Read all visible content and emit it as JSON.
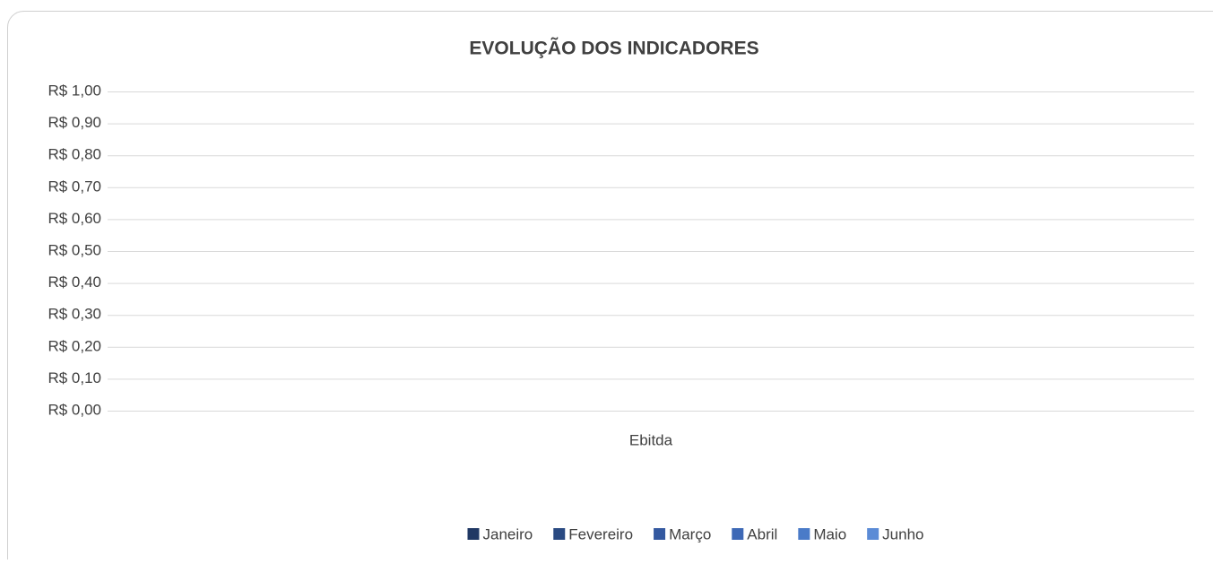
{
  "chart_data": {
    "type": "bar",
    "title": "EVOLUÇÃO DOS INDICADORES",
    "categories": [
      "Ebitda"
    ],
    "series": [
      {
        "name": "Janeiro",
        "color": "#203864",
        "values": [
          0
        ]
      },
      {
        "name": "Fevereiro",
        "color": "#2a4a82",
        "values": [
          0
        ]
      },
      {
        "name": "Março",
        "color": "#3459a0",
        "values": [
          0
        ]
      },
      {
        "name": "Abril",
        "color": "#3e69b6",
        "values": [
          0
        ]
      },
      {
        "name": "Maio",
        "color": "#4a7bc8",
        "values": [
          0
        ]
      },
      {
        "name": "Junho",
        "color": "#5b8bd6",
        "values": [
          0
        ]
      }
    ],
    "ylim": [
      0,
      1
    ],
    "yticks": [
      {
        "value": 0,
        "label": "R$ 0,00"
      },
      {
        "value": 0.1,
        "label": "R$ 0,10"
      },
      {
        "value": 0.2,
        "label": "R$ 0,20"
      },
      {
        "value": 0.3,
        "label": "R$ 0,30"
      },
      {
        "value": 0.4,
        "label": "R$ 0,40"
      },
      {
        "value": 0.5,
        "label": "R$ 0,50"
      },
      {
        "value": 0.6,
        "label": "R$ 0,60"
      },
      {
        "value": 0.7,
        "label": "R$ 0,70"
      },
      {
        "value": 0.8,
        "label": "R$ 0,80"
      },
      {
        "value": 0.9,
        "label": "R$ 0,90"
      },
      {
        "value": 1,
        "label": "R$ 1,00"
      }
    ],
    "grid": true,
    "legend": "bottom"
  }
}
